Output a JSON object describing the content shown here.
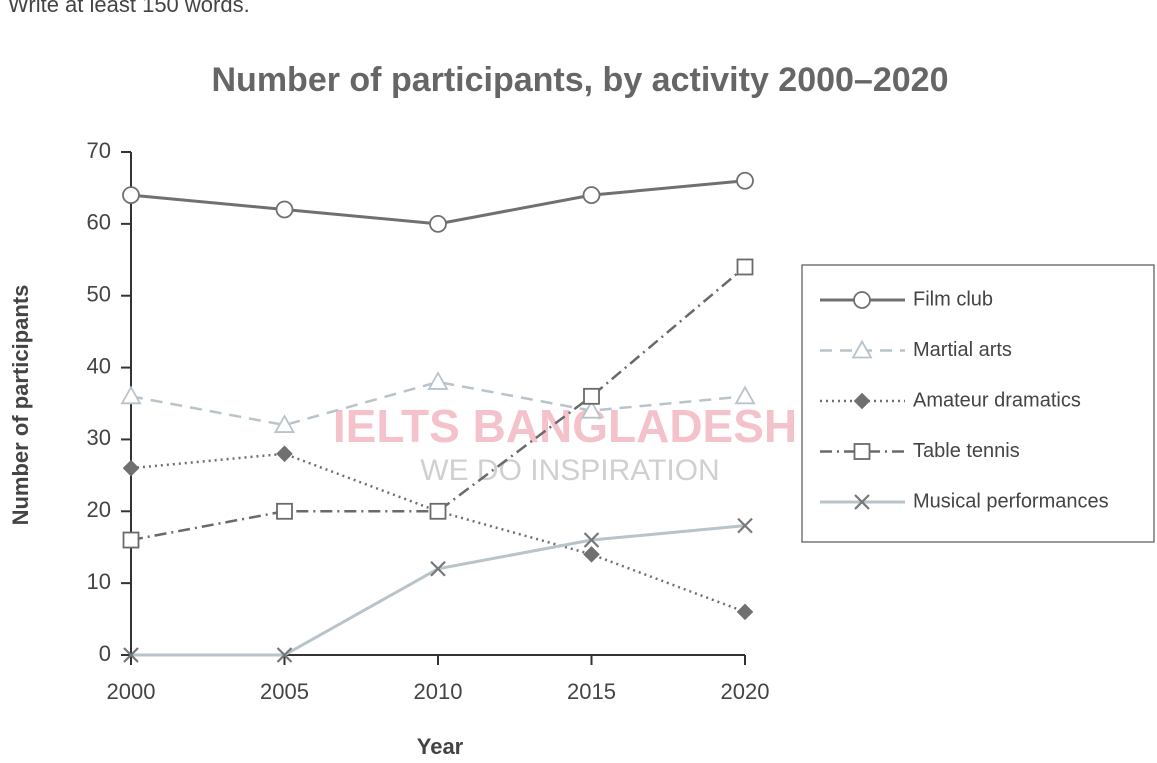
{
  "chart_data": {
    "type": "line",
    "note": "Write at least 150 words.",
    "title": "Number of participants, by activity 2000–2020",
    "x_label": "Year",
    "y_label": "Number of participants",
    "watermark": [
      "IELTS BANGLADESH",
      "WE DO INSPIRATION"
    ],
    "x": [
      2000,
      2005,
      2010,
      2015,
      2020
    ],
    "xlim": [
      2000,
      2020
    ],
    "xticks": [
      2000,
      2005,
      2010,
      2015,
      2020
    ],
    "ylim": [
      0,
      70
    ],
    "yticks": [
      0,
      10,
      20,
      30,
      40,
      50,
      60,
      70
    ],
    "legend": "right",
    "series": [
      {
        "name": "Film club",
        "color": "#707070",
        "dash": "solid",
        "marker": "circle",
        "values": [
          64,
          62,
          60,
          64,
          66
        ]
      },
      {
        "name": "Martial arts",
        "color": "#b9c3ca",
        "dash": "dashed",
        "marker": "triangle",
        "values": [
          36,
          32,
          38,
          34,
          36
        ]
      },
      {
        "name": "Amateur dramatics",
        "color": "#707070",
        "dash": "dotted",
        "marker": "diamond",
        "values": [
          26,
          28,
          20,
          14,
          6
        ]
      },
      {
        "name": "Table tennis",
        "color": "#6a6a6a",
        "dash": "dashdot",
        "marker": "square",
        "values": [
          16,
          20,
          20,
          36,
          54
        ]
      },
      {
        "name": "Musical performances",
        "color": "#b9c3ca",
        "dash": "solid",
        "marker": "x",
        "values": [
          0,
          0,
          12,
          16,
          18
        ]
      }
    ]
  }
}
